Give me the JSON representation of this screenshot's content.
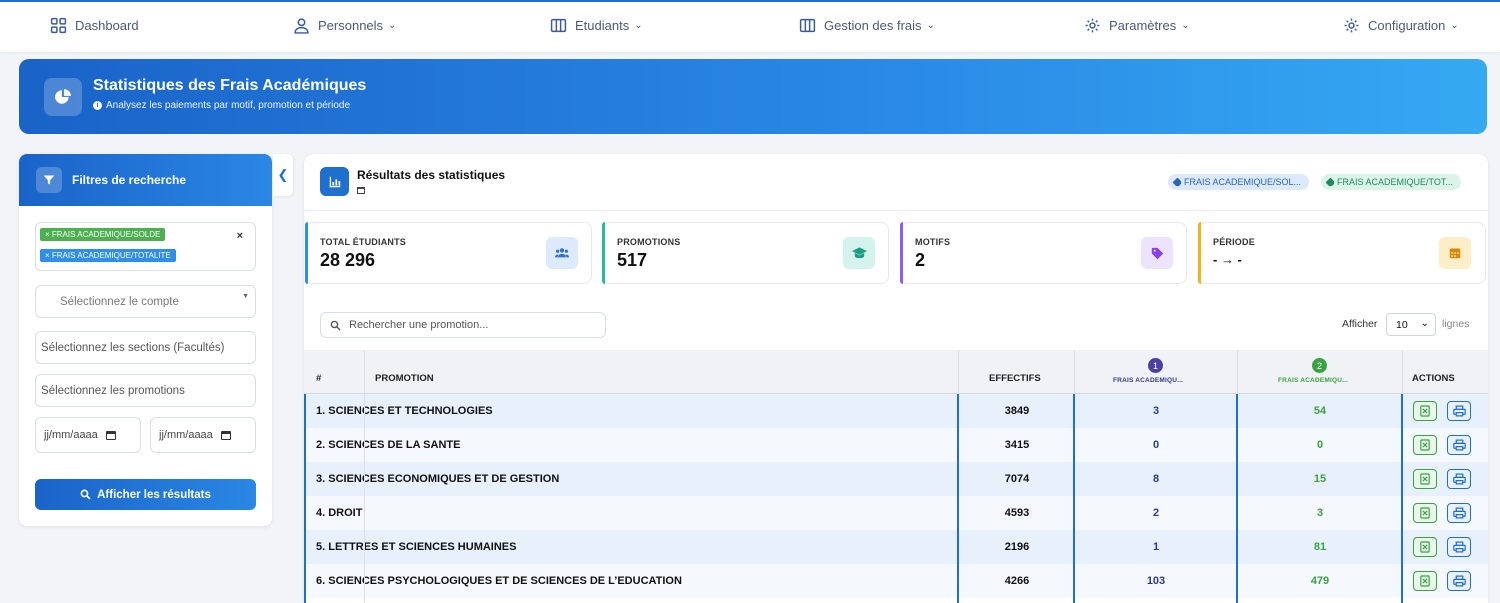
{
  "nav": {
    "dashboard": "Dashboard",
    "personnels": "Personnels",
    "etudiants": "Etudiants",
    "gestion_frais": "Gestion des frais",
    "parametres": "Paramètres",
    "configuration": "Configuration"
  },
  "banner": {
    "title": "Statistiques des Frais Académiques",
    "subtitle": "Analysez les paiements par motif, promotion et période"
  },
  "filters": {
    "title": "Filtres de recherche",
    "tags": [
      "× FRAIS ACADEMIQUE/SOLDE",
      "× FRAIS ACADEMIQUE/TOTALITE"
    ],
    "clear": "×",
    "account_placeholder": "Sélectionnez le compte",
    "sections_placeholder": "Sélectionnez les sections (Facultés)",
    "promotions_placeholder": "Sélectionnez les promotions",
    "date_from": "jj/mm/aaaa",
    "date_to": "jj/mm/aaaa",
    "submit": "Afficher les résultats"
  },
  "results": {
    "title": "Résultats des statistiques",
    "chips": [
      "FRAIS ACADEMIQUE/SOL...",
      "FRAIS ACADEMIQUE/TOT..."
    ],
    "stats": [
      {
        "label": "TOTAL ÉTUDIANTS",
        "value": "28 296",
        "color": "#2f8fe8",
        "icon": "users-icon"
      },
      {
        "label": "PROMOTIONS",
        "value": "517",
        "color": "#27b8a0",
        "icon": "graduation-cap-icon"
      },
      {
        "label": "MOTIFS",
        "value": "2",
        "color": "#8b5cf6",
        "icon": "tag-icon"
      },
      {
        "label": "PÉRIODE",
        "value": "- → -",
        "color": "#f2b21b",
        "icon": "calendar-icon"
      }
    ],
    "search_placeholder": "Rechercher une promotion...",
    "show_label": "Afficher",
    "page_size": "10",
    "lines_label": "lignes"
  },
  "table": {
    "headers": {
      "index": "#",
      "promotion": "PROMOTION",
      "effectifs": "EFFECTIFS",
      "motif1_badge": "1",
      "motif1": "FRAIS ACADEMIQU...",
      "motif2_badge": "2",
      "motif2": "FRAIS ACADEMIQU...",
      "actions": "ACTIONS"
    },
    "rows": [
      {
        "promotion": "1. SCIENCES ET TECHNOLOGIES",
        "effectifs": "3849",
        "m1": "3",
        "m2": "54"
      },
      {
        "promotion": "2. SCIENCES DE LA SANTE",
        "effectifs": "3415",
        "m1": "0",
        "m2": "0"
      },
      {
        "promotion": "3. SCIENCES ECONOMIQUES ET DE GESTION",
        "effectifs": "7074",
        "m1": "8",
        "m2": "15"
      },
      {
        "promotion": "4. DROIT",
        "effectifs": "4593",
        "m1": "2",
        "m2": "3"
      },
      {
        "promotion": "5. LETTRES ET SCIENCES HUMAINES",
        "effectifs": "2196",
        "m1": "1",
        "m2": "81"
      },
      {
        "promotion": "6. SCIENCES PSYCHOLOGIQUES ET DE SCIENCES DE L’EDUCATION",
        "effectifs": "4266",
        "m1": "103",
        "m2": "479"
      }
    ]
  },
  "colors": {
    "primary": "#1f6fcf",
    "motif1": "#4c3f9e",
    "motif2": "#3aa244"
  }
}
